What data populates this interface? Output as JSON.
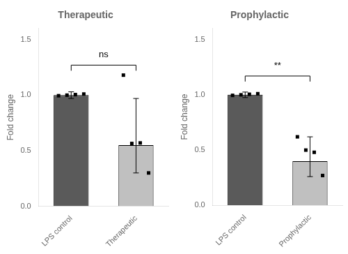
{
  "chart_data": [
    {
      "type": "bar",
      "title": "Therapeutic",
      "categories": [
        "LPS control",
        "Therapeutic"
      ],
      "values": [
        1.0,
        0.55
      ],
      "colors": [
        "#5a5a5a",
        "#c0c0c0"
      ],
      "error_minus": [
        0.03,
        0.25
      ],
      "error_plus": [
        0.03,
        0.42
      ],
      "points": [
        [
          0.995,
          1.0,
          1.005,
          1.01
        ],
        [
          1.18,
          0.565,
          0.57,
          0.3
        ]
      ],
      "marker": "square",
      "annotation": "ns",
      "annotation_y": 1.32,
      "bracket_y": 1.27,
      "bracket_drop": 0.05,
      "ylabel": "Fold change",
      "ylim": [
        0,
        1.6
      ],
      "yticks": [
        {
          "value": 0.0,
          "label": "0.0"
        },
        0.5,
        {
          "value": 1.0,
          "label": "1.0"
        },
        1.5
      ],
      "grid": false
    },
    {
      "type": "bar",
      "title": "Prophylactic",
      "categories": [
        "LPS control",
        "Prophylactic"
      ],
      "values": [
        1.0,
        0.4
      ],
      "colors": [
        "#5a5a5a",
        "#c0c0c0"
      ],
      "error_minus": [
        0.025,
        0.14
      ],
      "error_plus": [
        0.025,
        0.22
      ],
      "points": [
        [
          0.995,
          1.0,
          1.005,
          1.01
        ],
        [
          0.62,
          0.5,
          0.48,
          0.27
        ]
      ],
      "marker": "square",
      "annotation": "**",
      "annotation_y": 1.22,
      "bracket_y": 1.17,
      "bracket_drop": 0.05,
      "ylabel": "Fold change",
      "ylim": [
        0,
        1.6
      ],
      "yticks": [
        {
          "value": 0.0,
          "label": "0.0"
        },
        0.5,
        {
          "value": 1.0,
          "label": "1.0"
        },
        1.5
      ],
      "grid": false
    }
  ]
}
